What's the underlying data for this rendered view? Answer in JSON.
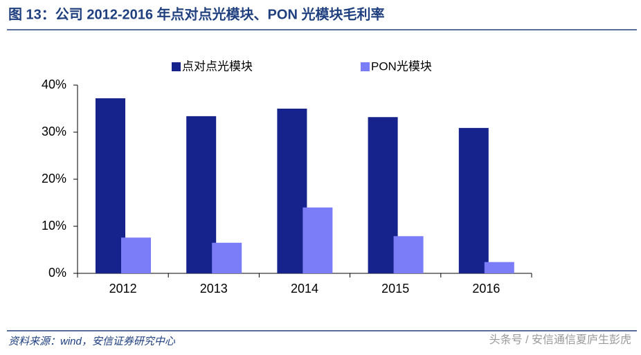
{
  "chart_data": {
    "type": "bar",
    "title": "图 13：公司 2012-2016 年点对点光模块、PON 光模块毛利率",
    "source": "资料来源：wind，安信证券研究中心",
    "watermark": "头条号 / 安信通信夏庐生彭虎",
    "categories": [
      "2012",
      "2013",
      "2014",
      "2015",
      "2016"
    ],
    "series": [
      {
        "name": "点对点光模块",
        "color": "#16238c",
        "values": [
          37.2,
          33.4,
          35.0,
          33.2,
          30.9
        ]
      },
      {
        "name": "PON光模块",
        "color": "#7b7cf7",
        "values": [
          7.6,
          6.5,
          14.0,
          7.9,
          2.4
        ]
      }
    ],
    "ylim": [
      0,
      40
    ],
    "yticks": [
      {
        "value": 0,
        "label": "0%"
      },
      {
        "value": 10,
        "label": "10%"
      },
      {
        "value": 20,
        "label": "20%"
      },
      {
        "value": 30,
        "label": "30%"
      },
      {
        "value": 40,
        "label": "40%"
      }
    ],
    "grid": false
  }
}
